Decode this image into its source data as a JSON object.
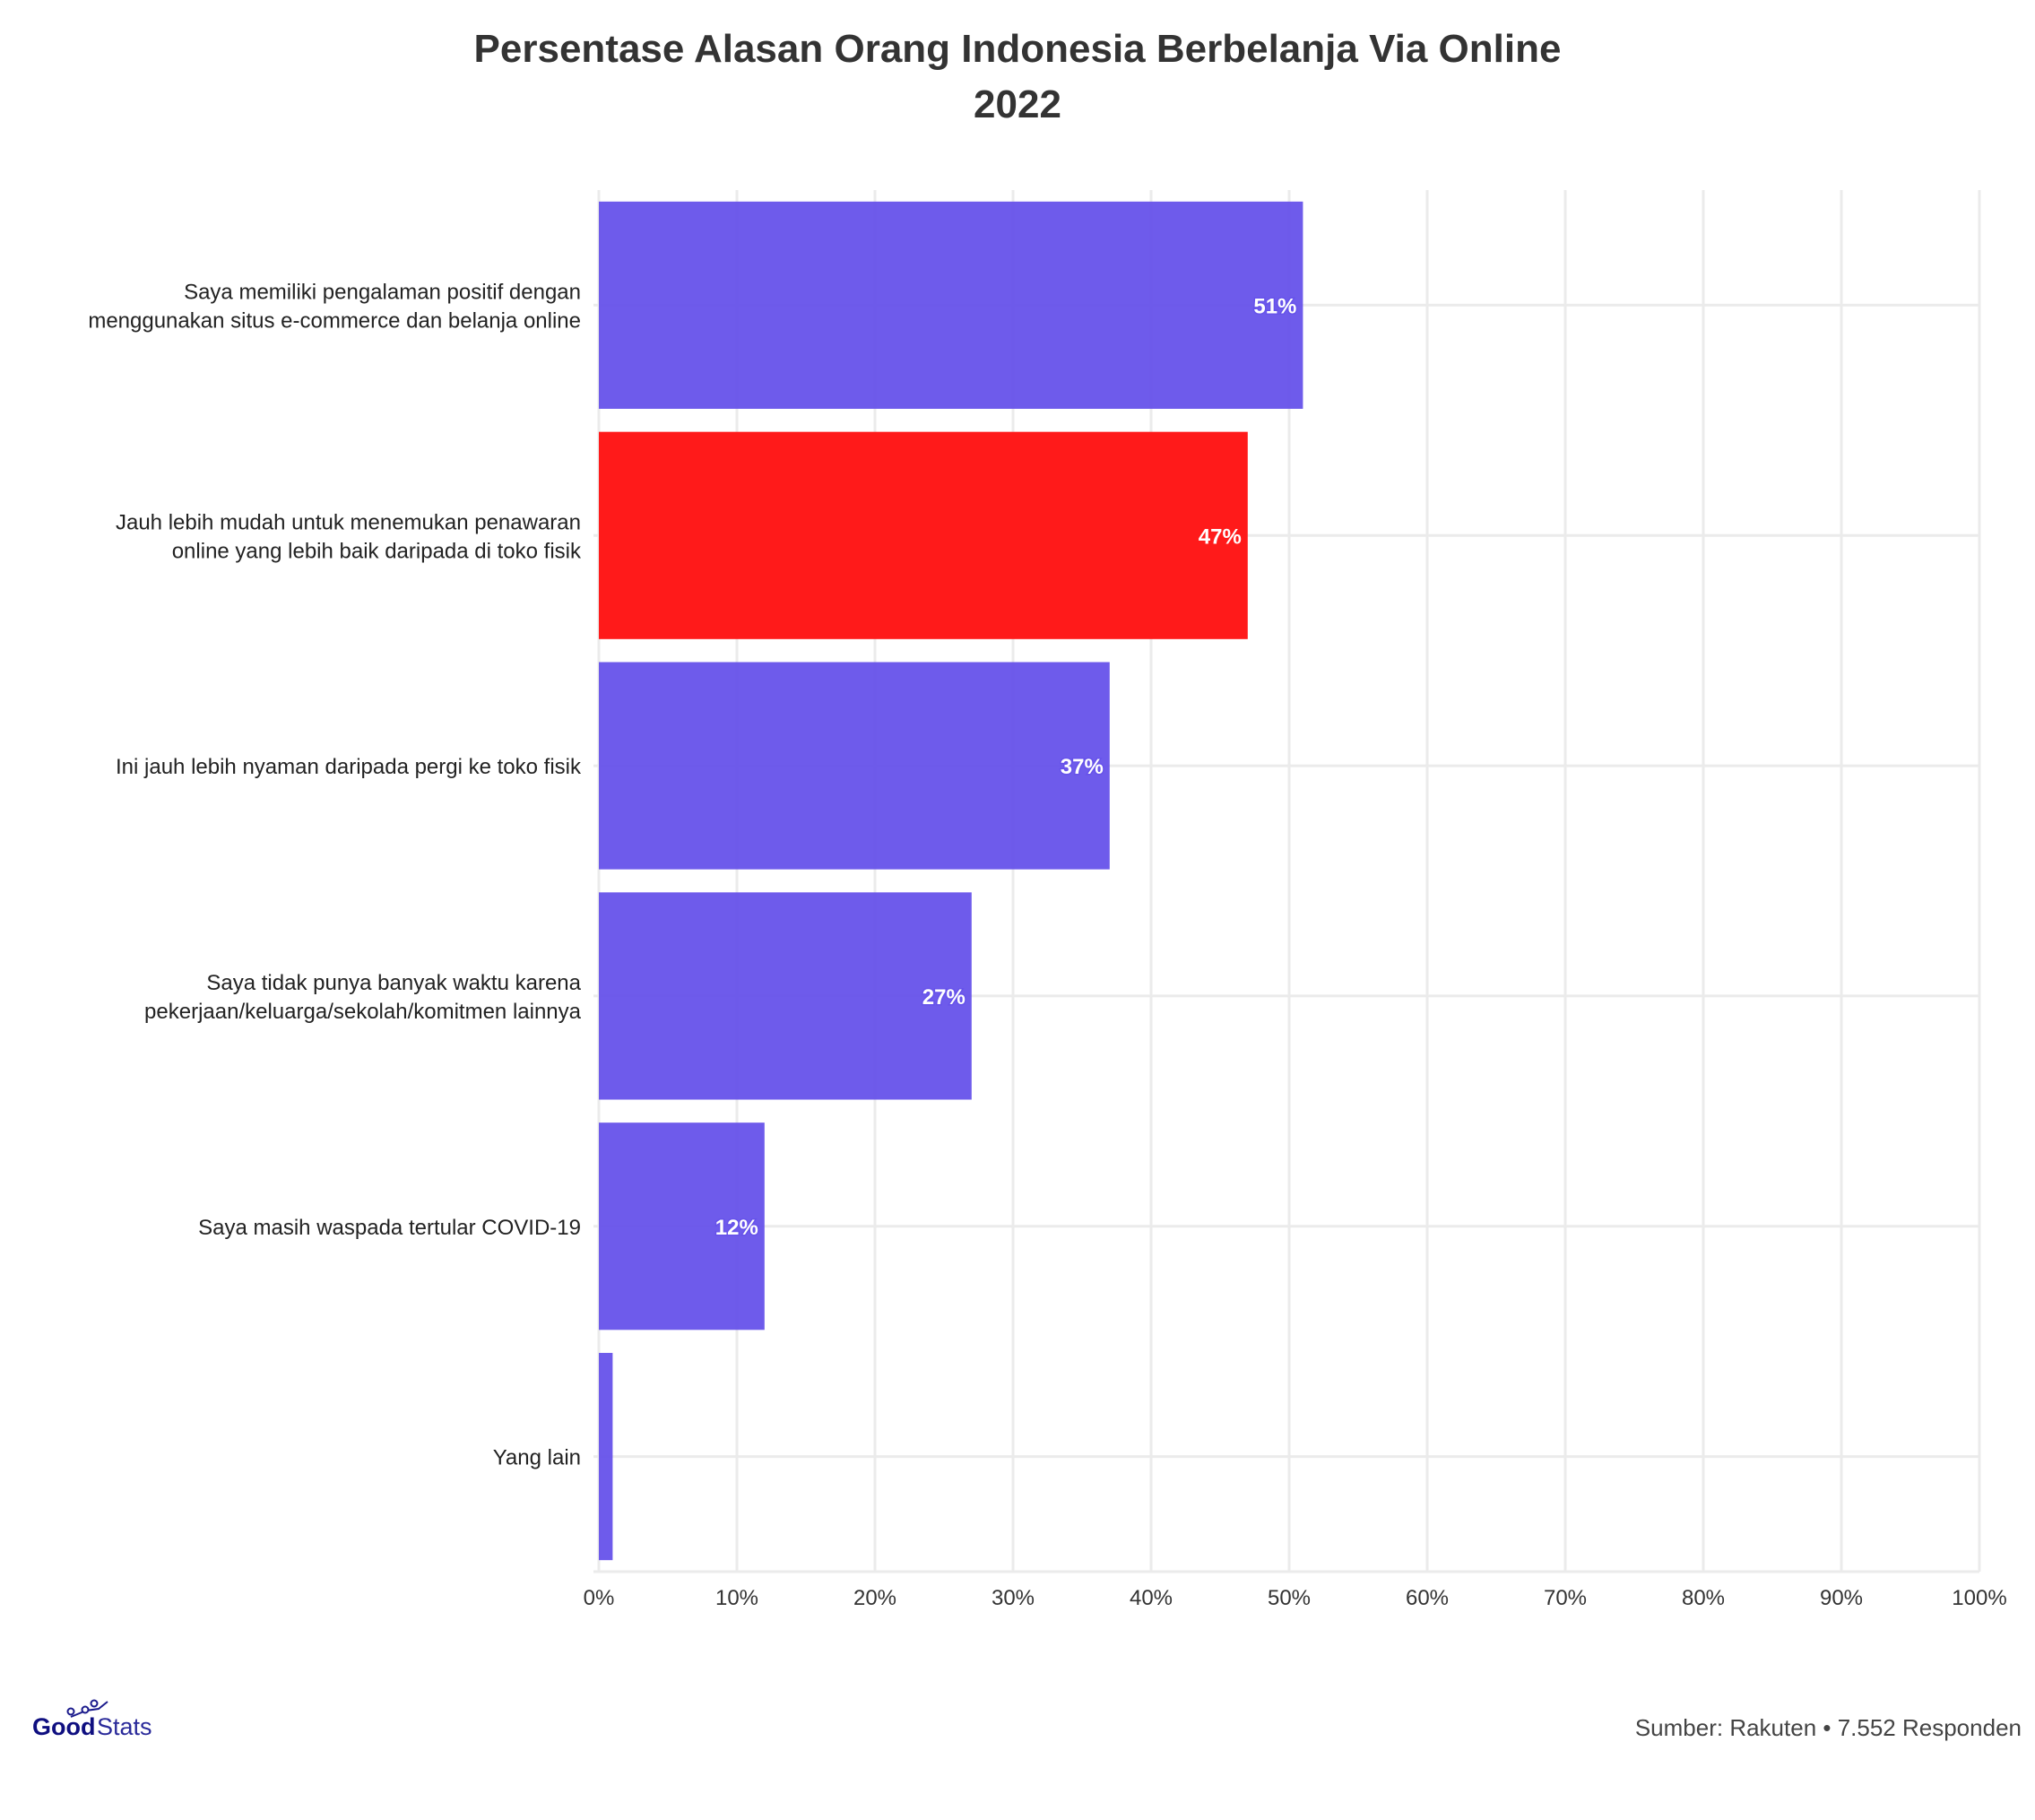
{
  "chart_data": {
    "type": "bar",
    "orientation": "horizontal",
    "title": "Persentase Alasan Orang Indonesia Berbelanja Via Online",
    "subtitle": "2022",
    "categories": [
      [
        "Saya memiliki pengalaman positif dengan",
        "menggunakan situs e-commerce dan belanja online"
      ],
      [
        "Jauh lebih mudah untuk menemukan penawaran",
        "online yang lebih baik daripada di toko fisik"
      ],
      [
        "Ini jauh lebih nyaman daripada pergi ke toko fisik"
      ],
      [
        "Saya tidak punya banyak waktu karena",
        "pekerjaan/keluarga/sekolah/komitmen lainnya"
      ],
      [
        "Saya masih waspada tertular COVID-19"
      ],
      [
        "Yang lain"
      ]
    ],
    "values": [
      51,
      47,
      37,
      27,
      12,
      1
    ],
    "data_labels": [
      "51%",
      "47%",
      "37%",
      "27%",
      "12%",
      ""
    ],
    "highlight_index": 1,
    "xlim": [
      0,
      100
    ],
    "xticks": [
      0,
      10,
      20,
      30,
      40,
      50,
      60,
      70,
      80,
      90,
      100
    ],
    "xtick_labels": [
      "0%",
      "10%",
      "20%",
      "30%",
      "40%",
      "50%",
      "60%",
      "70%",
      "80%",
      "90%",
      "100%"
    ],
    "grid": true,
    "colors": {
      "bar": "#6652EA",
      "highlight": "#FF1A1A",
      "grid": "#EBEBEB"
    }
  },
  "footer": {
    "source": "Sumber: Rakuten • 7.552 Responden",
    "logo_text": "GoodStats"
  }
}
